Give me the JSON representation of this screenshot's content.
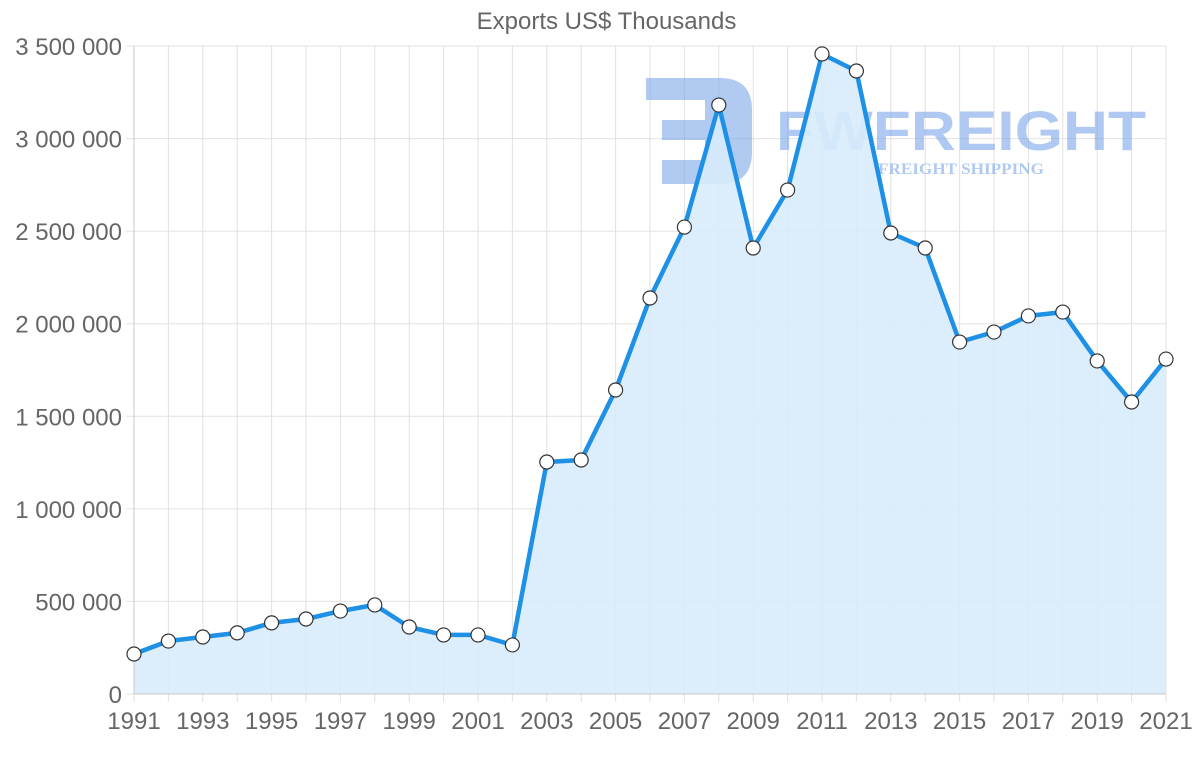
{
  "chart_data": {
    "type": "area",
    "title": "Exports US$ Thousands",
    "xlabel": "",
    "ylabel": "",
    "x": [
      1991,
      1992,
      1993,
      1994,
      1995,
      1996,
      1997,
      1998,
      1999,
      2000,
      2001,
      2002,
      2003,
      2004,
      2005,
      2006,
      2007,
      2008,
      2009,
      2010,
      2011,
      2012,
      2013,
      2014,
      2015,
      2016,
      2017,
      2018,
      2019,
      2020,
      2021
    ],
    "series": [
      {
        "name": "Exports US$ Thousands",
        "values": [
          216000,
          286000,
          308000,
          330000,
          384000,
          405000,
          448000,
          481000,
          362000,
          319000,
          319000,
          265000,
          1253000,
          1264000,
          1642000,
          2139000,
          2522000,
          3181000,
          2409000,
          2722000,
          3457000,
          3365000,
          2490000,
          2409000,
          1901000,
          1955000,
          2042000,
          2063000,
          1799000,
          1577000,
          1809000
        ]
      }
    ],
    "ylim": [
      0,
      3500000
    ],
    "yticks": [
      0,
      500000,
      1000000,
      1500000,
      2000000,
      2500000,
      3000000,
      3500000
    ],
    "ytick_labels": [
      "0",
      "500 000",
      "1 000 000",
      "1 500 000",
      "2 000 000",
      "2 500 000",
      "3 000 000",
      "3 500 000"
    ],
    "xtick_labels": [
      "1991",
      "1993",
      "1995",
      "1997",
      "1999",
      "2001",
      "2003",
      "2005",
      "2007",
      "2009",
      "2011",
      "2013",
      "2015",
      "2017",
      "2019",
      "2021"
    ],
    "grid": true,
    "legend": "none",
    "colors": {
      "line": "#1e90e6",
      "fill": "#d8ebfc",
      "point_fill": "#ffffff",
      "point_stroke": "#333333",
      "grid": "#e2e2e2"
    }
  },
  "watermark": {
    "brand": "FWFREIGHT",
    "tagline": "FREIGHT SHIPPING",
    "color": "#6f9ee8"
  }
}
